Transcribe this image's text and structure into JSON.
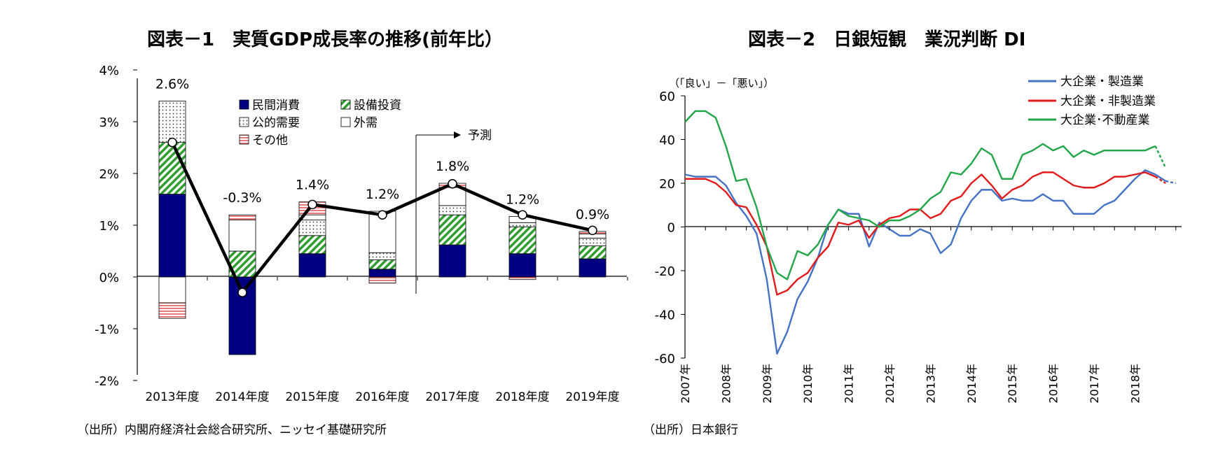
{
  "chart_data": [
    {
      "type": "bar",
      "title": "図表－1　実質GDP成長率の推移(前年比）",
      "source": "（出所）内閣府経済社会総合研究所、ニッセイ基礎研究所",
      "categories": [
        "2013年度",
        "2014年度",
        "2015年度",
        "2016年度",
        "2017年度",
        "2018年度",
        "2019年度"
      ],
      "yticks": [
        "4%",
        "3%",
        "2%",
        "1%",
        "0%",
        "-1%",
        "-2%"
      ],
      "ylim": [
        -2,
        4
      ],
      "stack_order_positive": [
        "private",
        "capex",
        "public",
        "external",
        "other"
      ],
      "series": [
        {
          "key": "private",
          "name": "民間消費",
          "values": [
            1.6,
            -1.5,
            0.45,
            0.15,
            0.62,
            0.45,
            0.35
          ]
        },
        {
          "key": "capex",
          "name": "設備投資",
          "values": [
            1.0,
            0.5,
            0.35,
            0.18,
            0.58,
            0.52,
            0.25
          ]
        },
        {
          "key": "public",
          "name": "公的需要",
          "values": [
            0.8,
            0.0,
            0.3,
            0.14,
            0.18,
            0.08,
            0.15
          ]
        },
        {
          "key": "external",
          "name": "外需",
          "values": [
            -0.5,
            0.6,
            0.1,
            0.8,
            0.35,
            0.12,
            0.08
          ]
        },
        {
          "key": "other",
          "name": "その他",
          "values": [
            -0.3,
            0.1,
            0.25,
            -0.12,
            0.08,
            -0.05,
            0.05
          ]
        }
      ],
      "total": {
        "name": "実質GDP",
        "values": [
          2.6,
          -0.3,
          1.4,
          1.2,
          1.8,
          1.2,
          0.9
        ]
      },
      "total_labels": [
        "2.6%",
        "-0.3%",
        "1.4%",
        "1.2%",
        "1.8%",
        "1.2%",
        "0.9%"
      ],
      "forecast_label": "予測",
      "forecast_start_index": 4
    },
    {
      "type": "line",
      "title": "図表－2　日銀短観　業況判断 DI",
      "source": "（出所）日本銀行",
      "ylabel": "（「良い」－「悪い」）",
      "ylim": [
        -60,
        60
      ],
      "yticks": [
        "60",
        "40",
        "20",
        "0",
        "-20",
        "-40",
        "-60"
      ],
      "x_labels": [
        "2007年",
        "2008年",
        "2009年",
        "2010年",
        "2011年",
        "2012年",
        "2013年",
        "2014年",
        "2015年",
        "2016年",
        "2017年",
        "2018年"
      ],
      "x_start_year": 2007,
      "quarters": 48,
      "forecast_points": 1,
      "series": [
        {
          "name": "大企業・製造業",
          "color": "#4472C4",
          "values": [
            24,
            23,
            23,
            23,
            19,
            11,
            5,
            -3,
            -24,
            -58,
            -48,
            -33,
            -25,
            -14,
            1,
            8,
            6,
            6,
            -9,
            2,
            -1,
            -4,
            -4,
            -1,
            -3,
            -12,
            -8,
            4,
            12,
            17,
            17,
            12,
            13,
            12,
            12,
            15,
            12,
            12,
            6,
            6,
            6,
            10,
            12,
            17,
            22,
            26,
            24,
            21,
            20
          ]
        },
        {
          "name": "大企業・非製造業",
          "color": "#E31A1C",
          "values": [
            22,
            22,
            22,
            20,
            16,
            10,
            9,
            1,
            -9,
            -31,
            -29,
            -24,
            -21,
            -14,
            -9,
            2,
            1,
            3,
            -5,
            1,
            4,
            5,
            8,
            8,
            4,
            6,
            12,
            14,
            20,
            24,
            19,
            13,
            17,
            19,
            23,
            25,
            25,
            22,
            19,
            18,
            18,
            20,
            23,
            23,
            24,
            25,
            23,
            20
          ]
        },
        {
          "name": "大企業･不動産業",
          "color": "#22A64A",
          "values": [
            48,
            53,
            53,
            50,
            37,
            21,
            22,
            9,
            -9,
            -21,
            -24,
            -11,
            -13,
            -8,
            1,
            8,
            5,
            4,
            3,
            0,
            3,
            3,
            5,
            8,
            13,
            16,
            25,
            24,
            29,
            36,
            33,
            22,
            22,
            33,
            35,
            38,
            35,
            37,
            32,
            35,
            33,
            35,
            35,
            35,
            35,
            35,
            37,
            27
          ]
        }
      ]
    }
  ]
}
